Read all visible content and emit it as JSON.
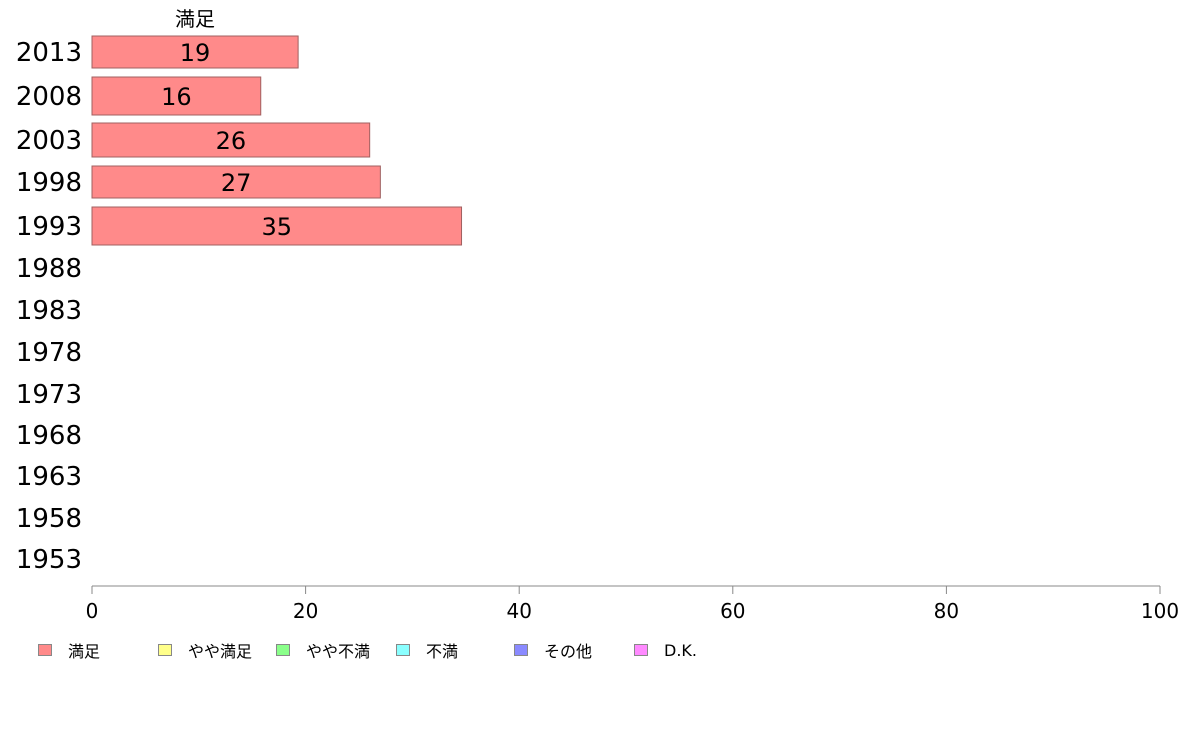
{
  "chart_data": {
    "type": "bar",
    "orientation": "horizontal",
    "series_header": "満足",
    "categories": [
      "2013",
      "2008",
      "2003",
      "1998",
      "1993",
      "1988",
      "1983",
      "1978",
      "1973",
      "1968",
      "1963",
      "1958",
      "1953"
    ],
    "series": [
      {
        "name": "満足",
        "color": "#ff8a8a",
        "values": [
          19.3,
          15.8,
          26.0,
          27.0,
          34.6,
          null,
          null,
          null,
          null,
          null,
          null,
          null,
          null
        ]
      }
    ],
    "data_labels": [
      "19",
      "16",
      "26",
      "27",
      "35",
      "",
      "",
      "",
      "",
      "",
      "",
      "",
      ""
    ],
    "xlim": [
      0,
      100
    ],
    "xticks": [
      0,
      20,
      40,
      60,
      80,
      100
    ],
    "grid": false,
    "legend_position": "bottom",
    "legend": [
      {
        "label": "満足",
        "color": "#ff8a8a"
      },
      {
        "label": "やや満足",
        "color": "#ffff8a"
      },
      {
        "label": "やや不満",
        "color": "#8aff8a"
      },
      {
        "label": "不満",
        "color": "#8affff"
      },
      {
        "label": "その他",
        "color": "#8a8aff"
      },
      {
        "label": "D.K.",
        "color": "#ff8aff"
      }
    ]
  }
}
